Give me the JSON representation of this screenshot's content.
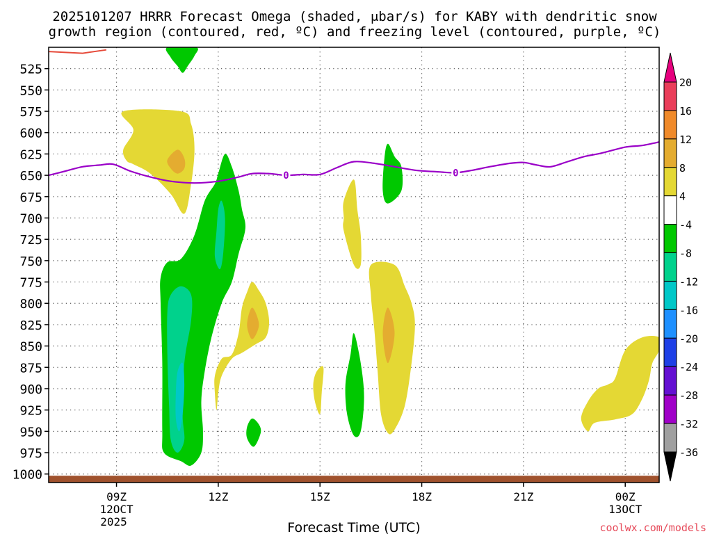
{
  "chart_data": {
    "type": "contour",
    "title_line1": "2025101207 HRRR Forecast Omega (shaded, μbar/s) for KABY with dendritic snow",
    "title_line2": "growth region (contoured, red, ºC) and freezing level (contoured, purple, ºC)",
    "xlabel": "Forecast Time (UTC)",
    "credit": "coolwx.com/models",
    "x_range_hours": [
      7,
      25
    ],
    "y_range_hpa": [
      500,
      1010
    ],
    "x_ticks": [
      {
        "hour": 9,
        "label": "09Z",
        "sub1": "12OCT",
        "sub2": "2025"
      },
      {
        "hour": 12,
        "label": "12Z",
        "sub1": "",
        "sub2": ""
      },
      {
        "hour": 15,
        "label": "15Z",
        "sub1": "",
        "sub2": ""
      },
      {
        "hour": 18,
        "label": "18Z",
        "sub1": "",
        "sub2": ""
      },
      {
        "hour": 21,
        "label": "21Z",
        "sub1": "",
        "sub2": ""
      },
      {
        "hour": 24,
        "label": "00Z",
        "sub1": "13OCT",
        "sub2": ""
      }
    ],
    "y_ticks": [
      525,
      550,
      575,
      600,
      625,
      650,
      675,
      700,
      725,
      750,
      775,
      800,
      825,
      850,
      875,
      900,
      925,
      950,
      975,
      1000
    ],
    "colorbar": {
      "labels": [
        "20",
        "16",
        "12",
        "8",
        "4",
        "-4",
        "-8",
        "-12",
        "-16",
        "-20",
        "-24",
        "-28",
        "-32",
        "-36"
      ],
      "colors": [
        "#ea3e5a",
        "#f08a2a",
        "#e4ac30",
        "#e4d834",
        "#ffffff",
        "#00c800",
        "#00d28c",
        "#00c8c8",
        "#1e90ff",
        "#1e40e6",
        "#6410d2",
        "#a000c8",
        "#a0a0a0"
      ],
      "top_arrow_color": "#e6007e",
      "bottom_arrow_color": "#000000"
    },
    "freezing_level": {
      "label": "0",
      "color": "#9a00c8",
      "label_hours": [
        14.0,
        19.0
      ],
      "points": [
        [
          7.0,
          650
        ],
        [
          7.5,
          645
        ],
        [
          8.0,
          640
        ],
        [
          8.5,
          638
        ],
        [
          8.9,
          637
        ],
        [
          9.4,
          645
        ],
        [
          10.0,
          652
        ],
        [
          10.6,
          657
        ],
        [
          11.3,
          659
        ],
        [
          12.0,
          657
        ],
        [
          12.6,
          652
        ],
        [
          13.0,
          648
        ],
        [
          13.5,
          648
        ],
        [
          14.0,
          650
        ],
        [
          14.5,
          649
        ],
        [
          15.0,
          649
        ],
        [
          15.5,
          641
        ],
        [
          16.0,
          634
        ],
        [
          16.6,
          636
        ],
        [
          17.2,
          640
        ],
        [
          17.8,
          644
        ],
        [
          18.5,
          646
        ],
        [
          19.0,
          647
        ],
        [
          19.5,
          644
        ],
        [
          20.0,
          640
        ],
        [
          20.6,
          636
        ],
        [
          21.0,
          635
        ],
        [
          21.4,
          638
        ],
        [
          21.8,
          640
        ],
        [
          22.3,
          634
        ],
        [
          22.8,
          628
        ],
        [
          23.3,
          624
        ],
        [
          24.0,
          617
        ],
        [
          24.5,
          615
        ],
        [
          25.0,
          611
        ]
      ]
    },
    "dendritic_contour": {
      "color": "#e64a3a",
      "points": [
        [
          7.0,
          505
        ],
        [
          8.0,
          507
        ],
        [
          8.7,
          503
        ]
      ]
    },
    "ground_color": "#a0522d",
    "omega_regions": [
      {
        "name": "green-upper-top",
        "value_range": "-8 to -4",
        "color": "#00c800",
        "points": [
          [
            10.5,
            500
          ],
          [
            10.6,
            512
          ],
          [
            10.8,
            522
          ],
          [
            10.95,
            530
          ],
          [
            11.1,
            522
          ],
          [
            11.3,
            510
          ],
          [
            11.35,
            500
          ]
        ]
      },
      {
        "name": "yellow-left-upper",
        "value_range": "4 to 8",
        "color": "#e4d834",
        "points": [
          [
            9.2,
            575
          ],
          [
            10.9,
            575
          ],
          [
            11.2,
            590
          ],
          [
            11.3,
            620
          ],
          [
            11.2,
            660
          ],
          [
            11.0,
            695
          ],
          [
            10.6,
            672
          ],
          [
            10.0,
            648
          ],
          [
            9.5,
            637
          ],
          [
            9.3,
            633
          ],
          [
            9.2,
            620
          ],
          [
            9.5,
            597
          ]
        ]
      },
      {
        "name": "orange-left-upper",
        "value_range": "8 to 12",
        "color": "#e4ac30",
        "points": [
          [
            10.5,
            632
          ],
          [
            10.8,
            620
          ],
          [
            11.0,
            630
          ],
          [
            11.0,
            642
          ],
          [
            10.8,
            648
          ],
          [
            10.6,
            642
          ]
        ]
      },
      {
        "name": "green-main",
        "value_range": "-8 to -4",
        "color": "#00c800",
        "points": [
          [
            12.0,
            648
          ],
          [
            12.2,
            625
          ],
          [
            12.4,
            640
          ],
          [
            12.6,
            668
          ],
          [
            12.7,
            690
          ],
          [
            12.8,
            712
          ],
          [
            12.6,
            742
          ],
          [
            12.4,
            775
          ],
          [
            12.1,
            800
          ],
          [
            11.8,
            840
          ],
          [
            11.6,
            880
          ],
          [
            11.5,
            915
          ],
          [
            11.55,
            950
          ],
          [
            11.5,
            975
          ],
          [
            11.2,
            990
          ],
          [
            10.9,
            985
          ],
          [
            10.4,
            975
          ],
          [
            10.35,
            950
          ],
          [
            10.35,
            870
          ],
          [
            10.3,
            800
          ],
          [
            10.3,
            770
          ],
          [
            10.5,
            752
          ],
          [
            10.9,
            748
          ],
          [
            11.3,
            720
          ],
          [
            11.6,
            680
          ],
          [
            11.9,
            660
          ]
        ]
      },
      {
        "name": "teal-column",
        "value_range": "-12 to -8",
        "color": "#00d28c",
        "points": [
          [
            10.6,
            790
          ],
          [
            10.9,
            780
          ],
          [
            11.2,
            790
          ],
          [
            11.2,
            820
          ],
          [
            11.0,
            870
          ],
          [
            10.95,
            930
          ],
          [
            11.0,
            960
          ],
          [
            10.8,
            975
          ],
          [
            10.6,
            960
          ],
          [
            10.55,
            920
          ],
          [
            10.5,
            860
          ],
          [
            10.5,
            810
          ]
        ]
      },
      {
        "name": "teal-narrow",
        "value_range": "-12 to -8",
        "color": "#00d28c",
        "points": [
          [
            12.1,
            680
          ],
          [
            12.2,
            700
          ],
          [
            12.15,
            740
          ],
          [
            12.05,
            760
          ],
          [
            11.9,
            745
          ],
          [
            11.95,
            715
          ],
          [
            12.0,
            690
          ]
        ]
      },
      {
        "name": "cyan-core",
        "value_range": "-16 to -12",
        "color": "#00c8c8",
        "points": [
          [
            10.8,
            880
          ],
          [
            10.95,
            870
          ],
          [
            11.0,
            895
          ],
          [
            10.95,
            930
          ],
          [
            10.85,
            950
          ],
          [
            10.75,
            935
          ],
          [
            10.75,
            905
          ]
        ]
      },
      {
        "name": "yellow-center-left",
        "value_range": "4 to 8",
        "color": "#e4d834",
        "points": [
          [
            13.0,
            775
          ],
          [
            13.2,
            785
          ],
          [
            13.4,
            800
          ],
          [
            13.5,
            822
          ],
          [
            13.4,
            840
          ],
          [
            13.1,
            848
          ],
          [
            12.7,
            858
          ],
          [
            12.4,
            865
          ],
          [
            12.1,
            885
          ],
          [
            12.0,
            905
          ],
          [
            11.95,
            925
          ],
          [
            11.9,
            905
          ],
          [
            11.9,
            885
          ],
          [
            12.1,
            865
          ],
          [
            12.4,
            860
          ],
          [
            12.6,
            835
          ],
          [
            12.7,
            805
          ],
          [
            12.85,
            787
          ]
        ]
      },
      {
        "name": "orange-center-left",
        "value_range": "8 to 12",
        "color": "#e4ac30",
        "points": [
          [
            13.0,
            805
          ],
          [
            13.2,
            825
          ],
          [
            13.0,
            842
          ],
          [
            12.85,
            825
          ]
        ]
      },
      {
        "name": "green-small-blob",
        "value_range": "-8 to -4",
        "color": "#00c800",
        "points": [
          [
            13.0,
            935
          ],
          [
            13.2,
            942
          ],
          [
            13.25,
            952
          ],
          [
            13.05,
            968
          ],
          [
            12.85,
            958
          ],
          [
            12.85,
            945
          ]
        ]
      },
      {
        "name": "yellow-small-pill",
        "value_range": "4 to 8",
        "color": "#e4d834",
        "points": [
          [
            14.9,
            880
          ],
          [
            15.1,
            875
          ],
          [
            15.05,
            905
          ],
          [
            15.0,
            930
          ],
          [
            14.85,
            915
          ],
          [
            14.8,
            895
          ]
        ]
      },
      {
        "name": "yellow-upper-middle",
        "value_range": "4 to 8",
        "color": "#e4d834",
        "points": [
          [
            15.7,
            680
          ],
          [
            16.0,
            655
          ],
          [
            16.1,
            690
          ],
          [
            16.2,
            720
          ],
          [
            16.2,
            755
          ],
          [
            16.0,
            755
          ],
          [
            15.7,
            715
          ],
          [
            15.7,
            700
          ]
        ]
      },
      {
        "name": "green-lower-middle",
        "value_range": "-8 to -4",
        "color": "#00c800",
        "points": [
          [
            16.0,
            835
          ],
          [
            16.2,
            870
          ],
          [
            16.3,
            910
          ],
          [
            16.2,
            950
          ],
          [
            16.0,
            955
          ],
          [
            15.8,
            930
          ],
          [
            15.75,
            895
          ],
          [
            15.9,
            860
          ]
        ]
      },
      {
        "name": "green-mid-right",
        "value_range": "-8 to -4",
        "color": "#00c800",
        "points": [
          [
            16.9,
            630
          ],
          [
            17.0,
            613
          ],
          [
            17.2,
            628
          ],
          [
            17.4,
            640
          ],
          [
            17.4,
            668
          ],
          [
            17.0,
            683
          ],
          [
            16.85,
            668
          ]
        ]
      },
      {
        "name": "yellow-right-middle",
        "value_range": "4 to 8",
        "color": "#e4d834",
        "points": [
          [
            16.5,
            755
          ],
          [
            17.2,
            755
          ],
          [
            17.5,
            780
          ],
          [
            17.7,
            800
          ],
          [
            17.8,
            825
          ],
          [
            17.7,
            870
          ],
          [
            17.5,
            920
          ],
          [
            17.2,
            948
          ],
          [
            17.0,
            952
          ],
          [
            16.8,
            930
          ],
          [
            16.7,
            880
          ],
          [
            16.6,
            830
          ],
          [
            16.5,
            790
          ]
        ]
      },
      {
        "name": "orange-right-middle",
        "value_range": "8 to 12",
        "color": "#e4ac30",
        "points": [
          [
            17.0,
            805
          ],
          [
            17.2,
            835
          ],
          [
            17.0,
            870
          ],
          [
            16.85,
            835
          ]
        ]
      },
      {
        "name": "yellow-far-right",
        "value_range": "4 to 8",
        "color": "#e4d834",
        "points": [
          [
            23.7,
            888
          ],
          [
            24.0,
            855
          ],
          [
            24.5,
            840
          ],
          [
            25.0,
            840
          ],
          [
            25.0,
            855
          ],
          [
            24.8,
            870
          ],
          [
            24.7,
            890
          ],
          [
            24.5,
            912
          ],
          [
            24.2,
            930
          ],
          [
            23.7,
            936
          ],
          [
            23.1,
            940
          ],
          [
            22.9,
            950
          ],
          [
            22.7,
            935
          ],
          [
            22.9,
            915
          ],
          [
            23.2,
            900
          ],
          [
            23.5,
            895
          ]
        ]
      }
    ]
  }
}
